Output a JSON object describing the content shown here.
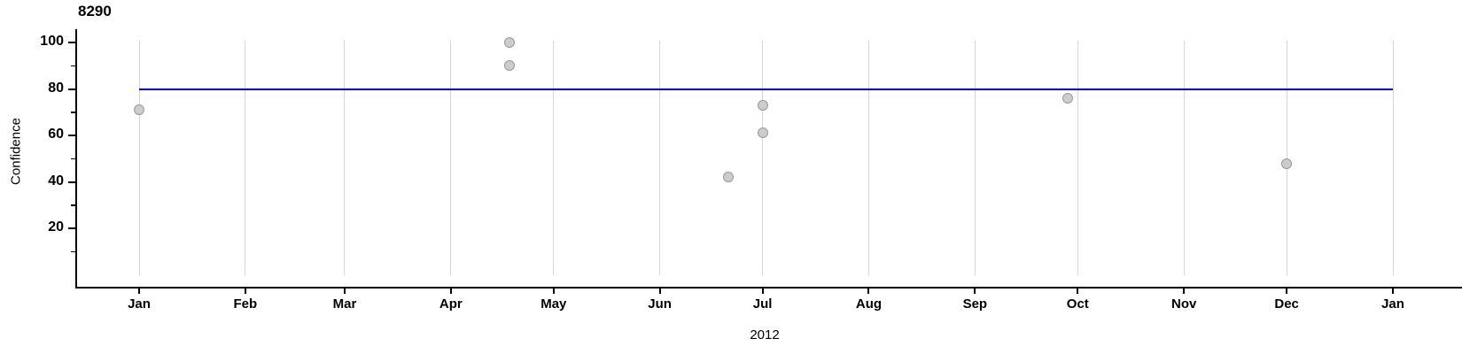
{
  "figure": {
    "title": "8290",
    "x_axis_label": "2012",
    "y_axis_label": "Confidence"
  },
  "chart_data": {
    "type": "scatter",
    "title": "8290",
    "xlabel": "2012",
    "ylabel": "Confidence",
    "x_axis": {
      "unit": "month-of-2012",
      "range_days": [
        0,
        366
      ],
      "ticks": [
        {
          "label": "Jan",
          "day": 0
        },
        {
          "label": "Feb",
          "day": 31
        },
        {
          "label": "Mar",
          "day": 60
        },
        {
          "label": "Apr",
          "day": 91
        },
        {
          "label": "May",
          "day": 121
        },
        {
          "label": "Jun",
          "day": 152
        },
        {
          "label": "Jul",
          "day": 182
        },
        {
          "label": "Aug",
          "day": 213
        },
        {
          "label": "Sep",
          "day": 244
        },
        {
          "label": "Oct",
          "day": 274
        },
        {
          "label": "Nov",
          "day": 305
        },
        {
          "label": "Dec",
          "day": 335
        },
        {
          "label": "Jan",
          "day": 366
        }
      ]
    },
    "y_axis": {
      "major_ticks": [
        100,
        80,
        60,
        40,
        20
      ],
      "minor_ticks": [
        90,
        70,
        50,
        30,
        10
      ],
      "range": [
        0,
        105
      ]
    },
    "points": [
      {
        "date": "Jan 1",
        "day": 0,
        "confidence": 71
      },
      {
        "date": "Apr 18",
        "day": 108,
        "confidence": 100
      },
      {
        "date": "Apr 18",
        "day": 108,
        "confidence": 90
      },
      {
        "date": "Jun 21",
        "day": 172,
        "confidence": 42
      },
      {
        "date": "Jul 1",
        "day": 182,
        "confidence": 73
      },
      {
        "date": "Jul 1",
        "day": 182,
        "confidence": 61
      },
      {
        "date": "Sep 28",
        "day": 271,
        "confidence": 76
      },
      {
        "date": "Dec 1",
        "day": 335,
        "confidence": 48
      }
    ],
    "reference_line": {
      "value": 80,
      "color": "#0000cd"
    },
    "style": {
      "point_fill": "#cccccc",
      "point_stroke": "#999999",
      "gridline_color": "#d6d6d6",
      "axis_color": "#000000"
    },
    "grid": "vertical-month-gridlines-only",
    "legend": "none"
  }
}
